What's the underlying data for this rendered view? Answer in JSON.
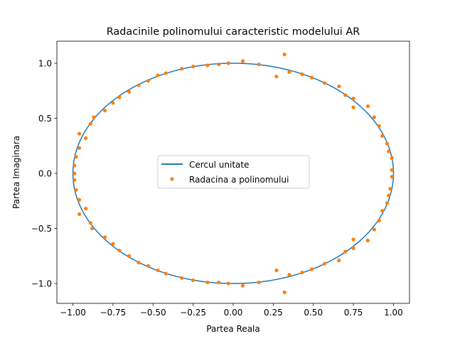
{
  "chart_data": {
    "type": "scatter",
    "title": "Radacinile polinomului caracteristic modelului AR",
    "xlabel": "Partea Reala",
    "ylabel": "Partea Imaginara",
    "xlim": [
      -1.1,
      1.1
    ],
    "ylim": [
      -1.18,
      1.2
    ],
    "x_ticks": [
      -1.0,
      -0.75,
      -0.5,
      -0.25,
      0.0,
      0.25,
      0.5,
      0.75,
      1.0
    ],
    "x_tick_labels": [
      "−1.00",
      "−0.75",
      "−0.50",
      "−0.25",
      "0.00",
      "0.25",
      "0.50",
      "0.75",
      "1.00"
    ],
    "y_ticks": [
      -1.0,
      -0.5,
      0.0,
      0.5,
      1.0
    ],
    "y_tick_labels": [
      "−1.0",
      "−0.5",
      "0.0",
      "0.5",
      "1.0"
    ],
    "grid": false,
    "legend": {
      "position": "center"
    },
    "series": [
      {
        "name": "Cercul unitate",
        "kind": "line",
        "color": "#1f77b4",
        "shape": "unit-circle"
      },
      {
        "name": "Radacina a polinomului",
        "kind": "scatter",
        "color": "#ff7f0e",
        "points": [
          [
            0.06,
            1.02
          ],
          [
            0.16,
            0.99
          ],
          [
            0.32,
            1.08
          ],
          [
            0.27,
            0.88
          ],
          [
            0.35,
            0.92
          ],
          [
            0.43,
            0.9
          ],
          [
            0.49,
            0.87
          ],
          [
            0.57,
            0.82
          ],
          [
            0.66,
            0.79
          ],
          [
            0.7,
            0.71
          ],
          [
            0.75,
            0.6
          ],
          [
            0.75,
            0.68
          ],
          [
            0.84,
            0.61
          ],
          [
            0.88,
            0.51
          ],
          [
            0.91,
            0.43
          ],
          [
            0.93,
            0.34
          ],
          [
            0.96,
            0.27
          ],
          [
            0.97,
            0.2
          ],
          [
            0.99,
            0.14
          ],
          [
            0.99,
            0.03
          ],
          [
            0.99,
            -0.03
          ],
          [
            0.98,
            -0.14
          ],
          [
            0.97,
            -0.2
          ],
          [
            0.96,
            -0.27
          ],
          [
            0.93,
            -0.34
          ],
          [
            0.91,
            -0.43
          ],
          [
            0.88,
            -0.51
          ],
          [
            0.84,
            -0.61
          ],
          [
            0.75,
            -0.6
          ],
          [
            0.75,
            -0.68
          ],
          [
            0.7,
            -0.71
          ],
          [
            0.66,
            -0.79
          ],
          [
            0.57,
            -0.82
          ],
          [
            0.49,
            -0.87
          ],
          [
            0.43,
            -0.9
          ],
          [
            0.35,
            -0.92
          ],
          [
            0.27,
            -0.88
          ],
          [
            0.32,
            -1.08
          ],
          [
            0.16,
            -0.99
          ],
          [
            0.06,
            -1.02
          ],
          [
            -0.03,
            -1.0
          ],
          [
            -0.09,
            -0.99
          ],
          [
            -0.16,
            -0.99
          ],
          [
            -0.25,
            -0.97
          ],
          [
            -0.32,
            -0.95
          ],
          [
            -0.42,
            -0.91
          ],
          [
            -0.47,
            -0.88
          ],
          [
            -0.53,
            -0.84
          ],
          [
            -0.59,
            -0.81
          ],
          [
            -0.65,
            -0.75
          ],
          [
            -0.71,
            -0.7
          ],
          [
            -0.75,
            -0.64
          ],
          [
            -0.8,
            -0.58
          ],
          [
            -0.88,
            -0.5
          ],
          [
            -0.89,
            -0.45
          ],
          [
            -0.92,
            -0.32
          ],
          [
            -0.96,
            -0.37
          ],
          [
            -0.96,
            -0.24
          ],
          [
            -0.98,
            -0.15
          ],
          [
            -0.99,
            -0.06
          ],
          [
            -0.99,
            0.0
          ],
          [
            -0.99,
            0.07
          ],
          [
            -0.98,
            0.15
          ],
          [
            -0.96,
            0.23
          ],
          [
            -0.96,
            0.36
          ],
          [
            -0.92,
            0.32
          ],
          [
            -0.89,
            0.45
          ],
          [
            -0.87,
            0.51
          ],
          [
            -0.8,
            0.57
          ],
          [
            -0.75,
            0.64
          ],
          [
            -0.71,
            0.69
          ],
          [
            -0.65,
            0.74
          ],
          [
            -0.59,
            0.8
          ],
          [
            -0.53,
            0.84
          ],
          [
            -0.47,
            0.89
          ],
          [
            -0.42,
            0.91
          ],
          [
            -0.32,
            0.95
          ],
          [
            -0.25,
            0.97
          ],
          [
            -0.16,
            0.98
          ],
          [
            -0.09,
            0.99
          ],
          [
            -0.03,
            1.0
          ]
        ]
      }
    ]
  }
}
